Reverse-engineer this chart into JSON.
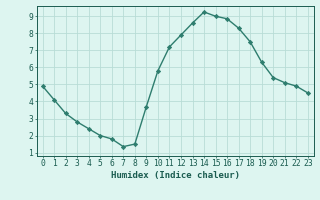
{
  "x": [
    0,
    1,
    2,
    3,
    4,
    5,
    6,
    7,
    8,
    9,
    10,
    11,
    12,
    13,
    14,
    15,
    16,
    17,
    18,
    19,
    20,
    21,
    22,
    23
  ],
  "y": [
    4.9,
    4.1,
    3.3,
    2.8,
    2.4,
    2.0,
    1.8,
    1.35,
    1.5,
    3.7,
    5.8,
    7.2,
    7.9,
    8.6,
    9.25,
    9.0,
    8.85,
    8.3,
    7.5,
    6.3,
    5.4,
    5.1,
    4.9,
    4.5
  ],
  "line_color": "#2e7d6e",
  "marker": "D",
  "marker_size": 2.2,
  "bg_color": "#ddf5f0",
  "grid_color": "#b8ddd6",
  "xlabel": "Humidex (Indice chaleur)",
  "xlim": [
    -0.5,
    23.5
  ],
  "ylim": [
    0.8,
    9.6
  ],
  "yticks": [
    1,
    2,
    3,
    4,
    5,
    6,
    7,
    8,
    9
  ],
  "xticks": [
    0,
    1,
    2,
    3,
    4,
    5,
    6,
    7,
    8,
    9,
    10,
    11,
    12,
    13,
    14,
    15,
    16,
    17,
    18,
    19,
    20,
    21,
    22,
    23
  ],
  "axis_color": "#1a5c50",
  "label_fontsize": 6.5,
  "tick_fontsize": 5.8,
  "linewidth": 1.0
}
